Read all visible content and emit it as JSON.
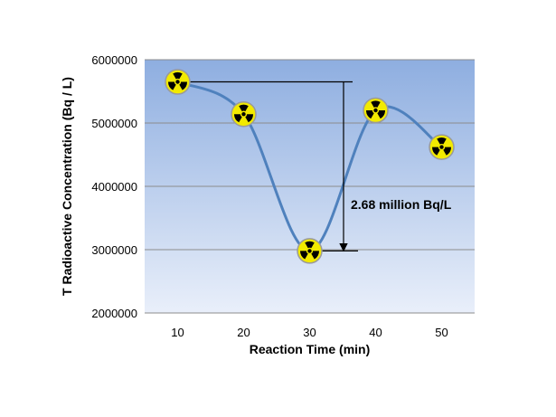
{
  "chart_data": {
    "type": "line",
    "title": "",
    "xlabel": "Reaction Time (min)",
    "ylabel": "T Radioactive  Concentration (Bq / L)",
    "x": [
      10,
      20,
      30,
      40,
      50
    ],
    "y": [
      5650000,
      5140000,
      2980000,
      5200000,
      4620000
    ],
    "xlim": [
      5,
      55
    ],
    "ylim": [
      2000000,
      6000000
    ],
    "yticks": [
      2000000,
      3000000,
      4000000,
      5000000,
      6000000
    ],
    "ytick_labels": [
      "2000000",
      "3000000",
      "4000000",
      "5000000",
      "6000000"
    ],
    "xticks": [
      10,
      20,
      30,
      40,
      50
    ],
    "xtick_labels": [
      "10",
      "20",
      "30",
      "40",
      "50"
    ],
    "grid": true,
    "marker": "radiation-symbol",
    "line_color": "#4f81bd",
    "plot_background_top": "#8eaee0",
    "plot_background_bottom": "#e9effa",
    "annotation": {
      "text": "2.68   million Bq/L",
      "from_y": 5650000,
      "to_y": 2980000
    }
  }
}
